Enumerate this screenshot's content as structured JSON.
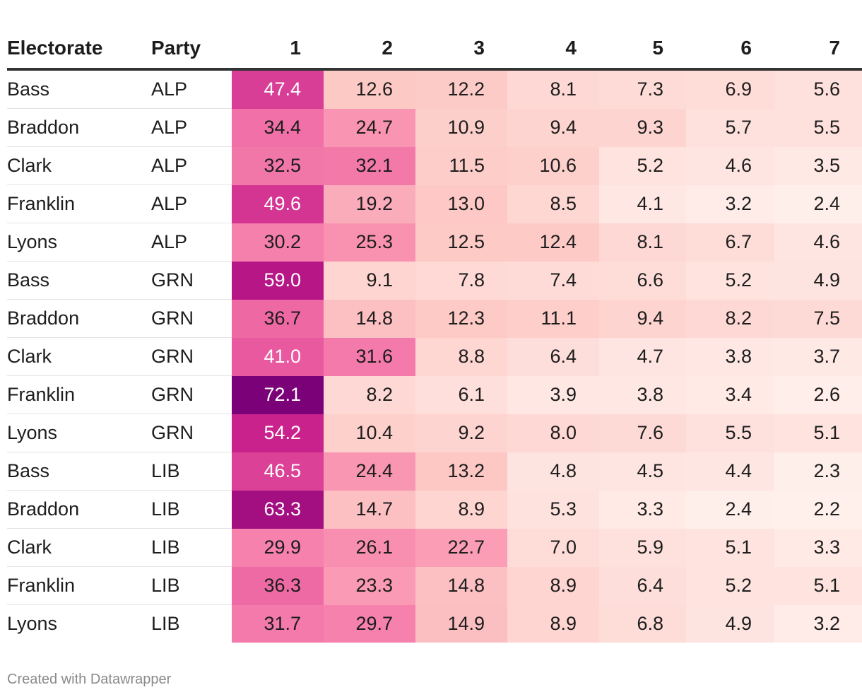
{
  "chart_data": {
    "type": "table",
    "title": "",
    "columns": [
      "Electorate",
      "Party",
      "1",
      "2",
      "3",
      "4",
      "5",
      "6",
      "7"
    ],
    "rows": [
      {
        "electorate": "Bass",
        "party": "ALP",
        "values": [
          "47.4",
          "12.6",
          "12.2",
          "8.1",
          "7.3",
          "6.9",
          "5.6"
        ]
      },
      {
        "electorate": "Braddon",
        "party": "ALP",
        "values": [
          "34.4",
          "24.7",
          "10.9",
          "9.4",
          "9.3",
          "5.7",
          "5.5"
        ]
      },
      {
        "electorate": "Clark",
        "party": "ALP",
        "values": [
          "32.5",
          "32.1",
          "11.5",
          "10.6",
          "5.2",
          "4.6",
          "3.5"
        ]
      },
      {
        "electorate": "Franklin",
        "party": "ALP",
        "values": [
          "49.6",
          "19.2",
          "13.0",
          "8.5",
          "4.1",
          "3.2",
          "2.4"
        ]
      },
      {
        "electorate": "Lyons",
        "party": "ALP",
        "values": [
          "30.2",
          "25.3",
          "12.5",
          "12.4",
          "8.1",
          "6.7",
          "4.6"
        ]
      },
      {
        "electorate": "Bass",
        "party": "GRN",
        "values": [
          "59.0",
          "9.1",
          "7.8",
          "7.4",
          "6.6",
          "5.2",
          "4.9"
        ]
      },
      {
        "electorate": "Braddon",
        "party": "GRN",
        "values": [
          "36.7",
          "14.8",
          "12.3",
          "11.1",
          "9.4",
          "8.2",
          "7.5"
        ]
      },
      {
        "electorate": "Clark",
        "party": "GRN",
        "values": [
          "41.0",
          "31.6",
          "8.8",
          "6.4",
          "4.7",
          "3.8",
          "3.7"
        ]
      },
      {
        "electorate": "Franklin",
        "party": "GRN",
        "values": [
          "72.1",
          "8.2",
          "6.1",
          "3.9",
          "3.8",
          "3.4",
          "2.6"
        ]
      },
      {
        "electorate": "Lyons",
        "party": "GRN",
        "values": [
          "54.2",
          "10.4",
          "9.2",
          "8.0",
          "7.6",
          "5.5",
          "5.1"
        ]
      },
      {
        "electorate": "Bass",
        "party": "LIB",
        "values": [
          "46.5",
          "24.4",
          "13.2",
          "4.8",
          "4.5",
          "4.4",
          "2.3"
        ]
      },
      {
        "electorate": "Braddon",
        "party": "LIB",
        "values": [
          "63.3",
          "14.7",
          "8.9",
          "5.3",
          "3.3",
          "2.4",
          "2.2"
        ]
      },
      {
        "electorate": "Clark",
        "party": "LIB",
        "values": [
          "29.9",
          "26.1",
          "22.7",
          "7.0",
          "5.9",
          "5.1",
          "3.3"
        ]
      },
      {
        "electorate": "Franklin",
        "party": "LIB",
        "values": [
          "36.3",
          "23.3",
          "14.8",
          "8.9",
          "6.4",
          "5.2",
          "5.1"
        ]
      },
      {
        "electorate": "Lyons",
        "party": "LIB",
        "values": [
          "31.7",
          "29.7",
          "14.9",
          "8.9",
          "6.8",
          "4.9",
          "3.2"
        ]
      }
    ],
    "color_scale": {
      "domain": [
        2.2,
        72.1
      ],
      "colors": [
        "#fff0ec",
        "#fdc9c5",
        "#f98fb0",
        "#ea5ba0",
        "#c51b8a",
        "#7a0177"
      ]
    }
  },
  "footer": {
    "credit": "Created with Datawrapper"
  }
}
